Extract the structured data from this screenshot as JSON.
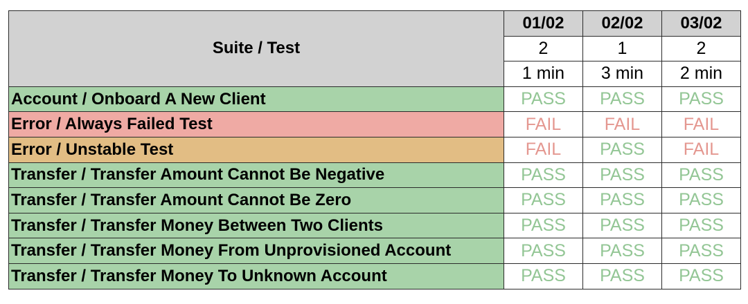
{
  "colors": {
    "header_bg": "#d2d2d2",
    "status_passing": "#a8d3a9",
    "status_failing": "#efaaa4",
    "status_flaky": "#e2bd84",
    "pass_text": "#93c695",
    "fail_text": "#e49790"
  },
  "header": {
    "title": "Suite / Test",
    "runs": [
      {
        "date": "01/02",
        "count": "2",
        "duration": "1 min"
      },
      {
        "date": "02/02",
        "count": "1",
        "duration": "3 min"
      },
      {
        "date": "03/02",
        "count": "2",
        "duration": "2 min"
      }
    ]
  },
  "rows": [
    {
      "name": "Account / Onboard A New Client",
      "status": "passing",
      "results": [
        "PASS",
        "PASS",
        "PASS"
      ]
    },
    {
      "name": "Error / Always Failed Test",
      "status": "failing",
      "results": [
        "FAIL",
        "FAIL",
        "FAIL"
      ]
    },
    {
      "name": "Error / Unstable Test",
      "status": "flaky",
      "results": [
        "FAIL",
        "PASS",
        "FAIL"
      ]
    },
    {
      "name": "Transfer / Transfer Amount Cannot Be Negative",
      "status": "passing",
      "results": [
        "PASS",
        "PASS",
        "PASS"
      ]
    },
    {
      "name": "Transfer / Transfer Amount Cannot Be Zero",
      "status": "passing",
      "results": [
        "PASS",
        "PASS",
        "PASS"
      ]
    },
    {
      "name": "Transfer / Transfer Money Between Two Clients",
      "status": "passing",
      "results": [
        "PASS",
        "PASS",
        "PASS"
      ]
    },
    {
      "name": "Transfer / Transfer Money From Unprovisioned Account",
      "status": "passing",
      "results": [
        "PASS",
        "PASS",
        "PASS"
      ]
    },
    {
      "name": "Transfer / Transfer Money To Unknown Account",
      "status": "passing",
      "results": [
        "PASS",
        "PASS",
        "PASS"
      ]
    }
  ]
}
